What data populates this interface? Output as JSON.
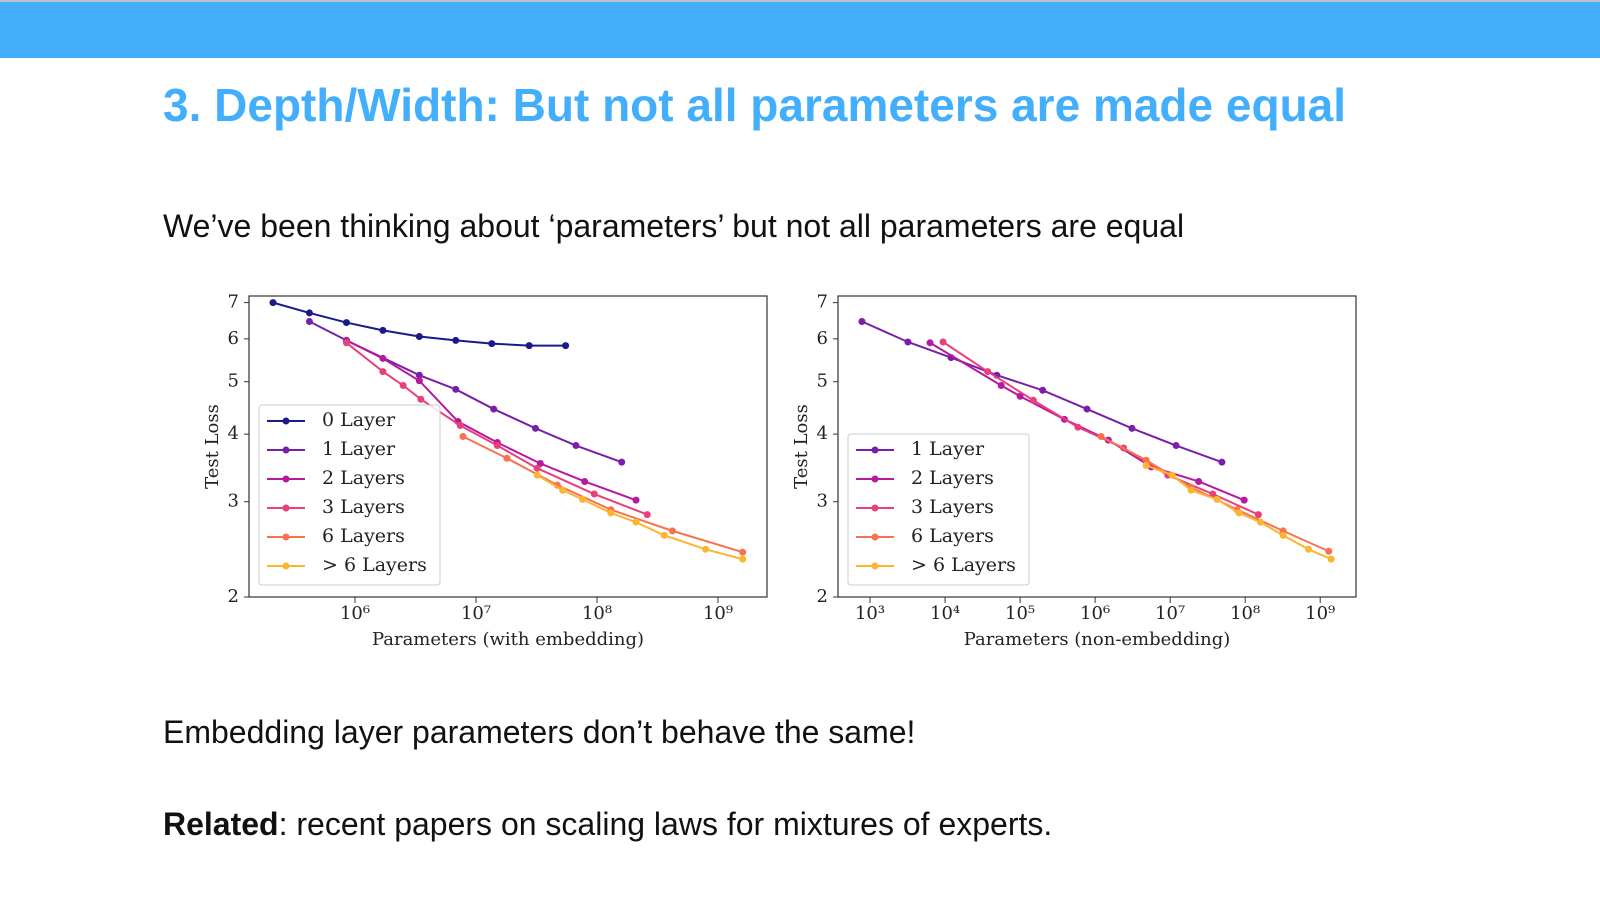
{
  "header": {
    "title": "3. Depth/Width: But not all parameters are made equal"
  },
  "intro": "We’ve been thinking about ‘parameters’ but not all parameters are equal",
  "note": "Embedding layer parameters don’t behave the same!",
  "related": {
    "label": "Related",
    "text": ": recent papers on scaling laws for mixtures of experts."
  },
  "chart_data": [
    {
      "type": "line",
      "xlabel": "Parameters (with embedding)",
      "ylabel": "Test Loss",
      "xscale": "log",
      "yscale": "log",
      "legend": "lower left",
      "xlim": [
        133000,
        2540000000
      ],
      "ylim": [
        2,
        7.2
      ],
      "xticks": [
        {
          "value": 1000000,
          "label": "10⁶"
        },
        {
          "value": 10000000,
          "label": "10⁷"
        },
        {
          "value": 100000000,
          "label": "10⁸"
        },
        {
          "value": 1000000000,
          "label": "10⁹"
        }
      ],
      "yticks": [
        2,
        3,
        4,
        5,
        6,
        7
      ],
      "series": [
        {
          "name": "0 Layer",
          "color": "#1b1a8a",
          "x": [
            210000,
            420000,
            850000,
            1700000,
            3400000,
            6800000,
            13500000,
            27500000,
            55000000
          ],
          "values": [
            7.0,
            6.7,
            6.43,
            6.22,
            6.06,
            5.96,
            5.88,
            5.83,
            5.83
          ]
        },
        {
          "name": "1 Layer",
          "color": "#7a1fa8",
          "x": [
            420000,
            850000,
            3400000,
            6800000,
            14000000,
            31000000,
            67000000,
            160000000
          ],
          "values": [
            6.46,
            5.96,
            5.14,
            4.84,
            4.45,
            4.1,
            3.81,
            3.55
          ]
        },
        {
          "name": "2 Layers",
          "color": "#b5199f",
          "x": [
            850000,
            1700000,
            3400000,
            7100000,
            15000000,
            34000000,
            79000000,
            210000000
          ],
          "values": [
            5.96,
            5.52,
            5.02,
            4.22,
            3.86,
            3.53,
            3.27,
            3.02
          ]
        },
        {
          "name": "3 Layers",
          "color": "#e8407a",
          "x": [
            850000,
            1700000,
            2500000,
            3500000,
            7400000,
            15000000,
            32000000,
            95000000,
            260000000
          ],
          "values": [
            5.9,
            5.22,
            4.92,
            4.64,
            4.15,
            3.81,
            3.46,
            3.1,
            2.84
          ]
        },
        {
          "name": "6 Layers",
          "color": "#f7734f",
          "x": [
            7800000,
            18000000,
            47000000,
            130000000,
            420000000,
            1600000000
          ],
          "values": [
            3.96,
            3.61,
            3.22,
            2.9,
            2.65,
            2.42
          ]
        },
        {
          "name": "> 6 Layers",
          "color": "#fdb42f",
          "x": [
            32000000,
            52000000,
            76000000,
            130000000,
            210000000,
            360000000,
            790000000,
            1600000000
          ],
          "values": [
            3.36,
            3.15,
            3.03,
            2.86,
            2.75,
            2.6,
            2.45,
            2.35
          ]
        }
      ]
    },
    {
      "type": "line",
      "xlabel": "Parameters (non-embedding)",
      "ylabel": "Test Loss",
      "xscale": "log",
      "yscale": "log",
      "legend": "lower left",
      "xlim": [
        374,
        3000000000
      ],
      "ylim": [
        2,
        7.2
      ],
      "xticks": [
        {
          "value": 1000,
          "label": "10³"
        },
        {
          "value": 10000,
          "label": "10⁴"
        },
        {
          "value": 100000,
          "label": "10⁵"
        },
        {
          "value": 1000000,
          "label": "10⁶"
        },
        {
          "value": 10000000,
          "label": "10⁷"
        },
        {
          "value": 100000000,
          "label": "10⁸"
        },
        {
          "value": 1000000000,
          "label": "10⁹"
        }
      ],
      "yticks": [
        2,
        3,
        4,
        5,
        6,
        7
      ],
      "series": [
        {
          "name": "1 Layer",
          "color": "#7a1fa8",
          "x": [
            780,
            3200,
            12000,
            49000,
            200000,
            780000,
            3100000,
            12000000,
            49000000
          ],
          "values": [
            6.46,
            5.92,
            5.54,
            5.14,
            4.82,
            4.45,
            4.1,
            3.81,
            3.55
          ]
        },
        {
          "name": "2 Layers",
          "color": "#b5199f",
          "x": [
            6300,
            56000,
            100000,
            390000,
            1500000,
            5600000,
            24000000,
            97000000
          ],
          "values": [
            5.9,
            4.92,
            4.7,
            4.26,
            3.9,
            3.48,
            3.27,
            3.02
          ]
        },
        {
          "name": "3 Layers",
          "color": "#e8407a",
          "x": [
            9400,
            37000,
            150000,
            590000,
            2400000,
            9300000,
            37000000,
            150000000
          ],
          "values": [
            5.92,
            5.22,
            4.62,
            4.12,
            3.77,
            3.36,
            3.1,
            2.84
          ]
        },
        {
          "name": "6 Layers",
          "color": "#f7734f",
          "x": [
            1200000,
            4800000,
            19000000,
            78000000,
            320000000,
            1300000000
          ],
          "values": [
            3.96,
            3.58,
            3.19,
            2.9,
            2.65,
            2.43
          ]
        },
        {
          "name": "> 6 Layers",
          "color": "#fdb42f",
          "x": [
            4800000,
            10600000,
            19000000,
            42000000,
            83000000,
            160000000,
            320000000,
            700000000,
            1400000000
          ],
          "values": [
            3.5,
            3.36,
            3.15,
            3.03,
            2.86,
            2.75,
            2.6,
            2.45,
            2.35
          ]
        }
      ]
    }
  ]
}
